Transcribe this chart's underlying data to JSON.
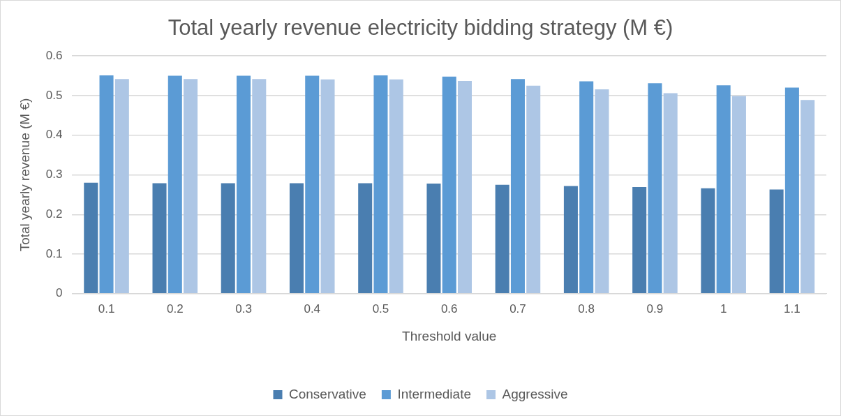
{
  "chart_data": {
    "type": "bar",
    "title": "Total yearly revenue electricity bidding strategy (M €)",
    "xlabel": "Threshold value",
    "ylabel": "Total yearly revenue (M €)",
    "categories": [
      "0.1",
      "0.2",
      "0.3",
      "0.4",
      "0.5",
      "0.6",
      "0.7",
      "0.8",
      "0.9",
      "1",
      "1.1"
    ],
    "series": [
      {
        "name": "Conservative",
        "color": "#4a7eb0",
        "values": [
          0.28,
          0.279,
          0.279,
          0.279,
          0.279,
          0.278,
          0.275,
          0.272,
          0.269,
          0.266,
          0.263
        ]
      },
      {
        "name": "Intermediate",
        "color": "#5b9bd5",
        "values": [
          0.551,
          0.55,
          0.55,
          0.55,
          0.551,
          0.548,
          0.542,
          0.536,
          0.531,
          0.526,
          0.52
        ]
      },
      {
        "name": "Aggressive",
        "color": "#adc6e5",
        "values": [
          0.542,
          0.542,
          0.542,
          0.541,
          0.541,
          0.537,
          0.525,
          0.516,
          0.506,
          0.499,
          0.489
        ]
      }
    ],
    "ylim": [
      0,
      0.6
    ],
    "yticks": [
      0,
      0.1,
      0.2,
      0.3,
      0.4,
      0.5,
      0.6
    ],
    "grid": "y",
    "legend": "bottom"
  }
}
